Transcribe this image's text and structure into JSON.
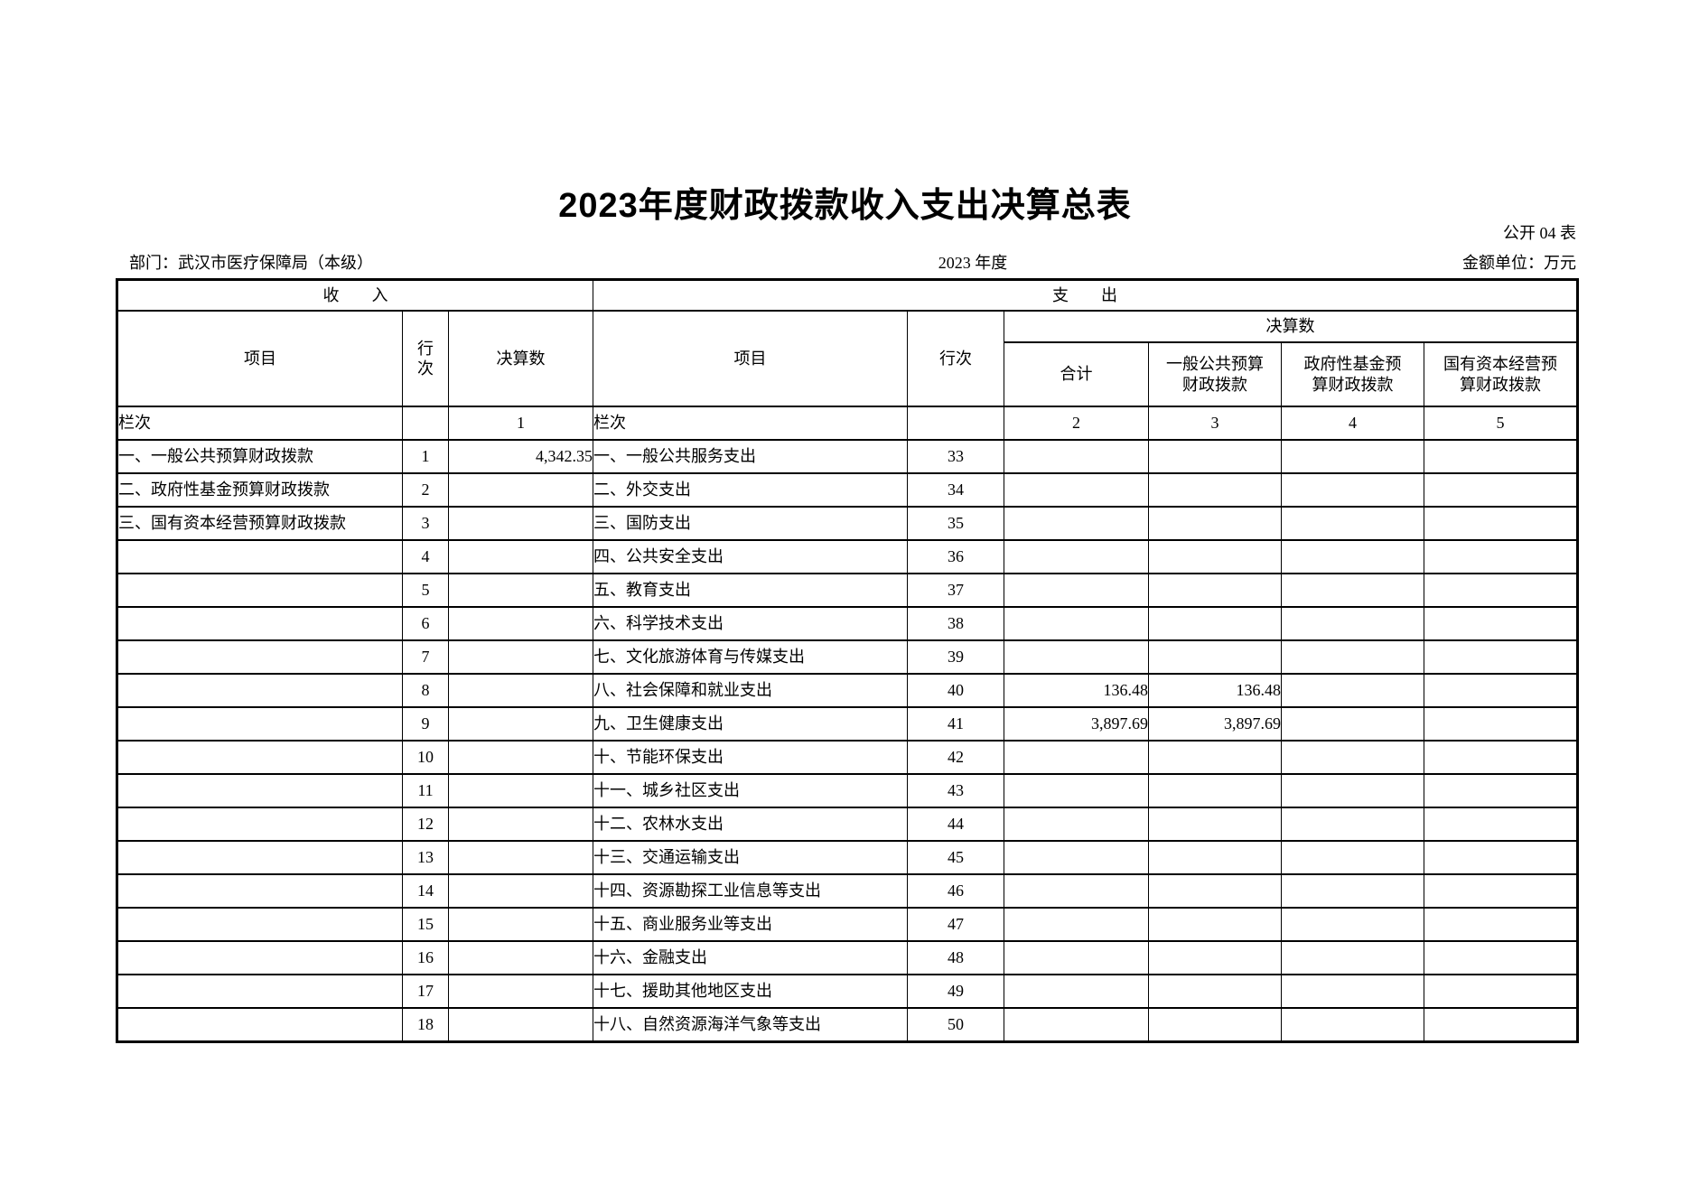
{
  "page": {
    "title": "2023年度财政拨款收入支出决算总表",
    "table_code": "公开 04 表",
    "department": "部门：武汉市医疗保障局（本级）",
    "fiscal_year": "2023 年度",
    "unit": "金额单位：万元"
  },
  "table": {
    "income_section": "收　　入",
    "expense_section": "支　　出",
    "headers": {
      "income_item": "项目",
      "income_line_no": "行\n次",
      "income_amount": "决算数",
      "expense_item": "项目",
      "expense_line_no": "行次",
      "expense_amount_group": "决算数",
      "total": "合计",
      "general_budget": "一般公共预算\n财政拨款",
      "gov_fund": "政府性基金预\n算财政拨款",
      "state_capital": "国有资本经营预\n算财政拨款"
    },
    "lanci": {
      "income_label": "栏次",
      "income_line_blank": "",
      "income_amount_no": "1",
      "expense_label": "栏次",
      "expense_line_blank": "",
      "total_no": "2",
      "general_budget_no": "3",
      "gov_fund_no": "4",
      "state_capital_no": "5"
    },
    "rows": [
      {
        "income_item": "一、一般公共预算财政拨款",
        "income_line": "1",
        "income_amount": "4,342.35",
        "expense_item": "一、一般公共服务支出",
        "expense_line": "33",
        "total": "",
        "general_budget": "",
        "gov_fund": "",
        "state_capital": ""
      },
      {
        "income_item": "二、政府性基金预算财政拨款",
        "income_line": "2",
        "income_amount": "",
        "expense_item": "二、外交支出",
        "expense_line": "34",
        "total": "",
        "general_budget": "",
        "gov_fund": "",
        "state_capital": ""
      },
      {
        "income_item": "三、国有资本经营预算财政拨款",
        "income_line": "3",
        "income_amount": "",
        "expense_item": "三、国防支出",
        "expense_line": "35",
        "total": "",
        "general_budget": "",
        "gov_fund": "",
        "state_capital": ""
      },
      {
        "income_item": "",
        "income_line": "4",
        "income_amount": "",
        "expense_item": "四、公共安全支出",
        "expense_line": "36",
        "total": "",
        "general_budget": "",
        "gov_fund": "",
        "state_capital": ""
      },
      {
        "income_item": "",
        "income_line": "5",
        "income_amount": "",
        "expense_item": "五、教育支出",
        "expense_line": "37",
        "total": "",
        "general_budget": "",
        "gov_fund": "",
        "state_capital": ""
      },
      {
        "income_item": "",
        "income_line": "6",
        "income_amount": "",
        "expense_item": "六、科学技术支出",
        "expense_line": "38",
        "total": "",
        "general_budget": "",
        "gov_fund": "",
        "state_capital": ""
      },
      {
        "income_item": "",
        "income_line": "7",
        "income_amount": "",
        "expense_item": "七、文化旅游体育与传媒支出",
        "expense_line": "39",
        "total": "",
        "general_budget": "",
        "gov_fund": "",
        "state_capital": ""
      },
      {
        "income_item": "",
        "income_line": "8",
        "income_amount": "",
        "expense_item": "八、社会保障和就业支出",
        "expense_line": "40",
        "total": "136.48",
        "general_budget": "136.48",
        "gov_fund": "",
        "state_capital": ""
      },
      {
        "income_item": "",
        "income_line": "9",
        "income_amount": "",
        "expense_item": "九、卫生健康支出",
        "expense_line": "41",
        "total": "3,897.69",
        "general_budget": "3,897.69",
        "gov_fund": "",
        "state_capital": ""
      },
      {
        "income_item": "",
        "income_line": "10",
        "income_amount": "",
        "expense_item": "十、节能环保支出",
        "expense_line": "42",
        "total": "",
        "general_budget": "",
        "gov_fund": "",
        "state_capital": ""
      },
      {
        "income_item": "",
        "income_line": "11",
        "income_amount": "",
        "expense_item": "十一、城乡社区支出",
        "expense_line": "43",
        "total": "",
        "general_budget": "",
        "gov_fund": "",
        "state_capital": ""
      },
      {
        "income_item": "",
        "income_line": "12",
        "income_amount": "",
        "expense_item": "十二、农林水支出",
        "expense_line": "44",
        "total": "",
        "general_budget": "",
        "gov_fund": "",
        "state_capital": ""
      },
      {
        "income_item": "",
        "income_line": "13",
        "income_amount": "",
        "expense_item": "十三、交通运输支出",
        "expense_line": "45",
        "total": "",
        "general_budget": "",
        "gov_fund": "",
        "state_capital": ""
      },
      {
        "income_item": "",
        "income_line": "14",
        "income_amount": "",
        "expense_item": "十四、资源勘探工业信息等支出",
        "expense_line": "46",
        "total": "",
        "general_budget": "",
        "gov_fund": "",
        "state_capital": ""
      },
      {
        "income_item": "",
        "income_line": "15",
        "income_amount": "",
        "expense_item": "十五、商业服务业等支出",
        "expense_line": "47",
        "total": "",
        "general_budget": "",
        "gov_fund": "",
        "state_capital": ""
      },
      {
        "income_item": "",
        "income_line": "16",
        "income_amount": "",
        "expense_item": "十六、金融支出",
        "expense_line": "48",
        "total": "",
        "general_budget": "",
        "gov_fund": "",
        "state_capital": ""
      },
      {
        "income_item": "",
        "income_line": "17",
        "income_amount": "",
        "expense_item": "十七、援助其他地区支出",
        "expense_line": "49",
        "total": "",
        "general_budget": "",
        "gov_fund": "",
        "state_capital": ""
      },
      {
        "income_item": "",
        "income_line": "18",
        "income_amount": "",
        "expense_item": "十八、自然资源海洋气象等支出",
        "expense_line": "50",
        "total": "",
        "general_budget": "",
        "gov_fund": "",
        "state_capital": ""
      }
    ]
  }
}
